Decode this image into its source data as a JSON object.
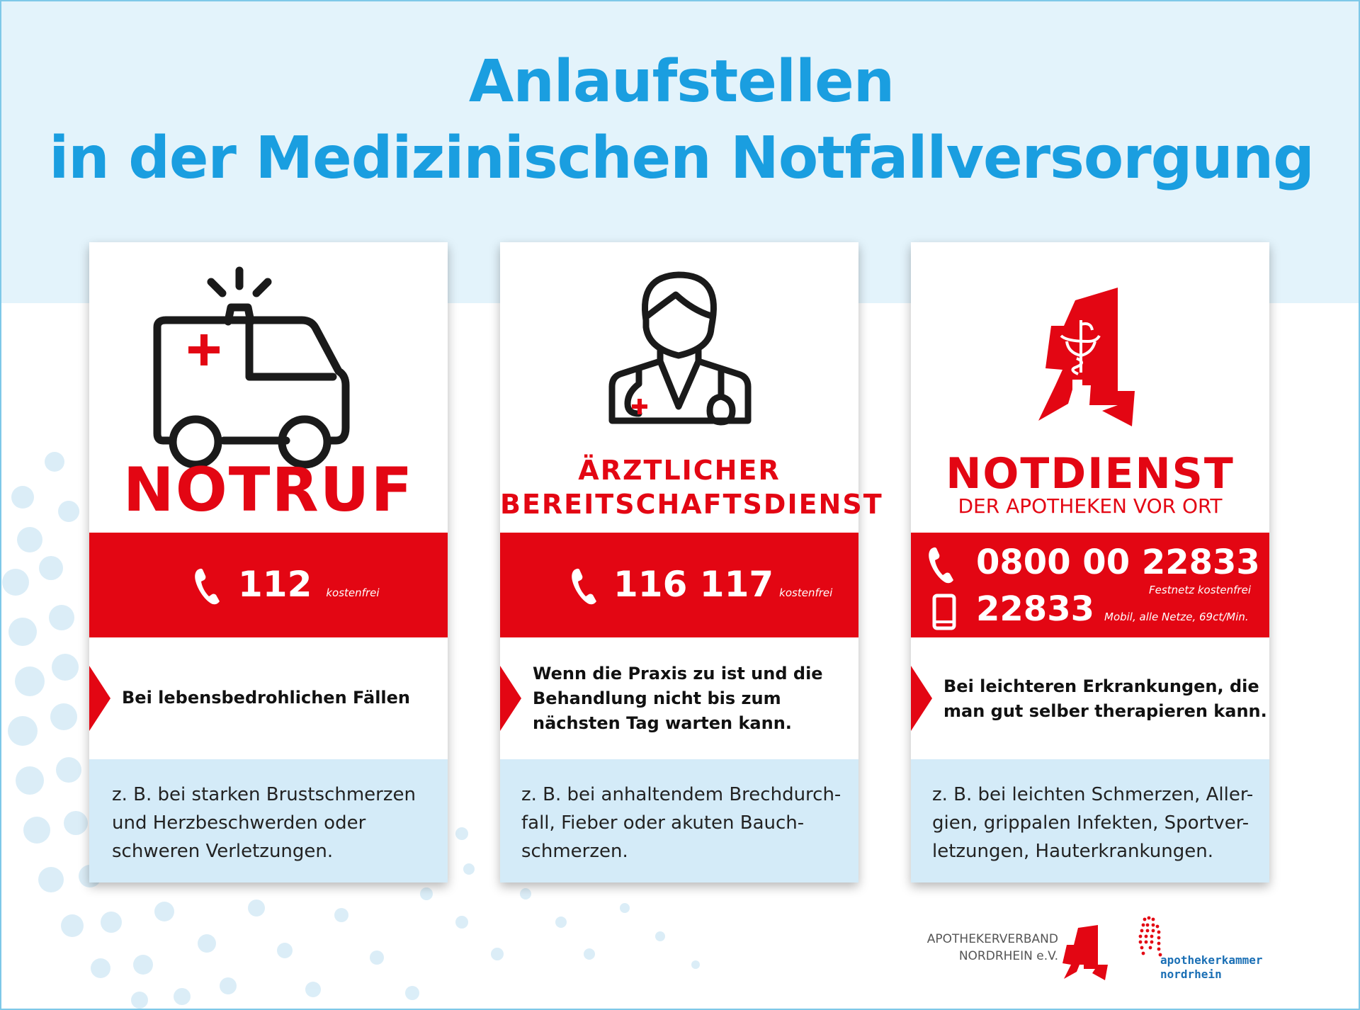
{
  "title": {
    "line1": "Anlaufstellen",
    "line2": "in der Medizinischen Notfallversorgung"
  },
  "colors": {
    "title_blue": "#1a9ee0",
    "accent_red": "#e30613",
    "band_light_blue": "#e3f3fb",
    "example_blue": "#d4ebf8"
  },
  "cards": [
    {
      "icon": "ambulance-icon",
      "heading": "NOTRUF",
      "phone_icon": "phone-icon",
      "number": "112",
      "number_note": "kostenfrei",
      "description": "Bei lebensbedrohlichen Fällen",
      "example_lines": [
        "z. B. bei starken Brustschmerzen",
        "und Herzbeschwerden oder",
        "schweren Verletzungen."
      ]
    },
    {
      "icon": "doctor-icon",
      "heading_line1": "ÄRZTLICHER",
      "heading_line2": "BEREITSCHAFTSDIENST",
      "phone_icon": "phone-icon",
      "number": "116 117",
      "number_note": "kostenfrei",
      "description_lines": [
        "Wenn die Praxis zu ist und die",
        "Behandlung nicht bis zum",
        "nächsten Tag warten kann."
      ],
      "example_lines": [
        "z. B. bei anhaltendem Brechdurch-",
        "fall, Fieber oder akuten Bauch-",
        "schmerzen."
      ]
    },
    {
      "icon": "pharmacy-a-icon",
      "heading": "NOTDIENST",
      "subheading": "DER APOTHEKEN VOR ORT",
      "phone_icon": "phone-icon",
      "number": "0800 00 22833",
      "number_note": "Festnetz kostenfrei",
      "mobile_icon": "mobile-phone-icon",
      "mobile_number": "22833",
      "mobile_note": "Mobil, alle Netze, 69ct/Min.",
      "description_lines": [
        "Bei leichteren Erkrankungen, die",
        "man gut selber therapieren kann."
      ],
      "example_lines": [
        "z. B. bei leichten Schmerzen, Aller-",
        "gien, grippalen Infekten, Sportver-",
        "letzungen, Hauterkrankungen."
      ]
    }
  ],
  "footer": {
    "verband_line1": "APOTHEKERVERBAND",
    "verband_line2": "NORDRHEIN e.V.",
    "kammer_line1": "apothekerkammer",
    "kammer_line2": "nordrhein"
  }
}
